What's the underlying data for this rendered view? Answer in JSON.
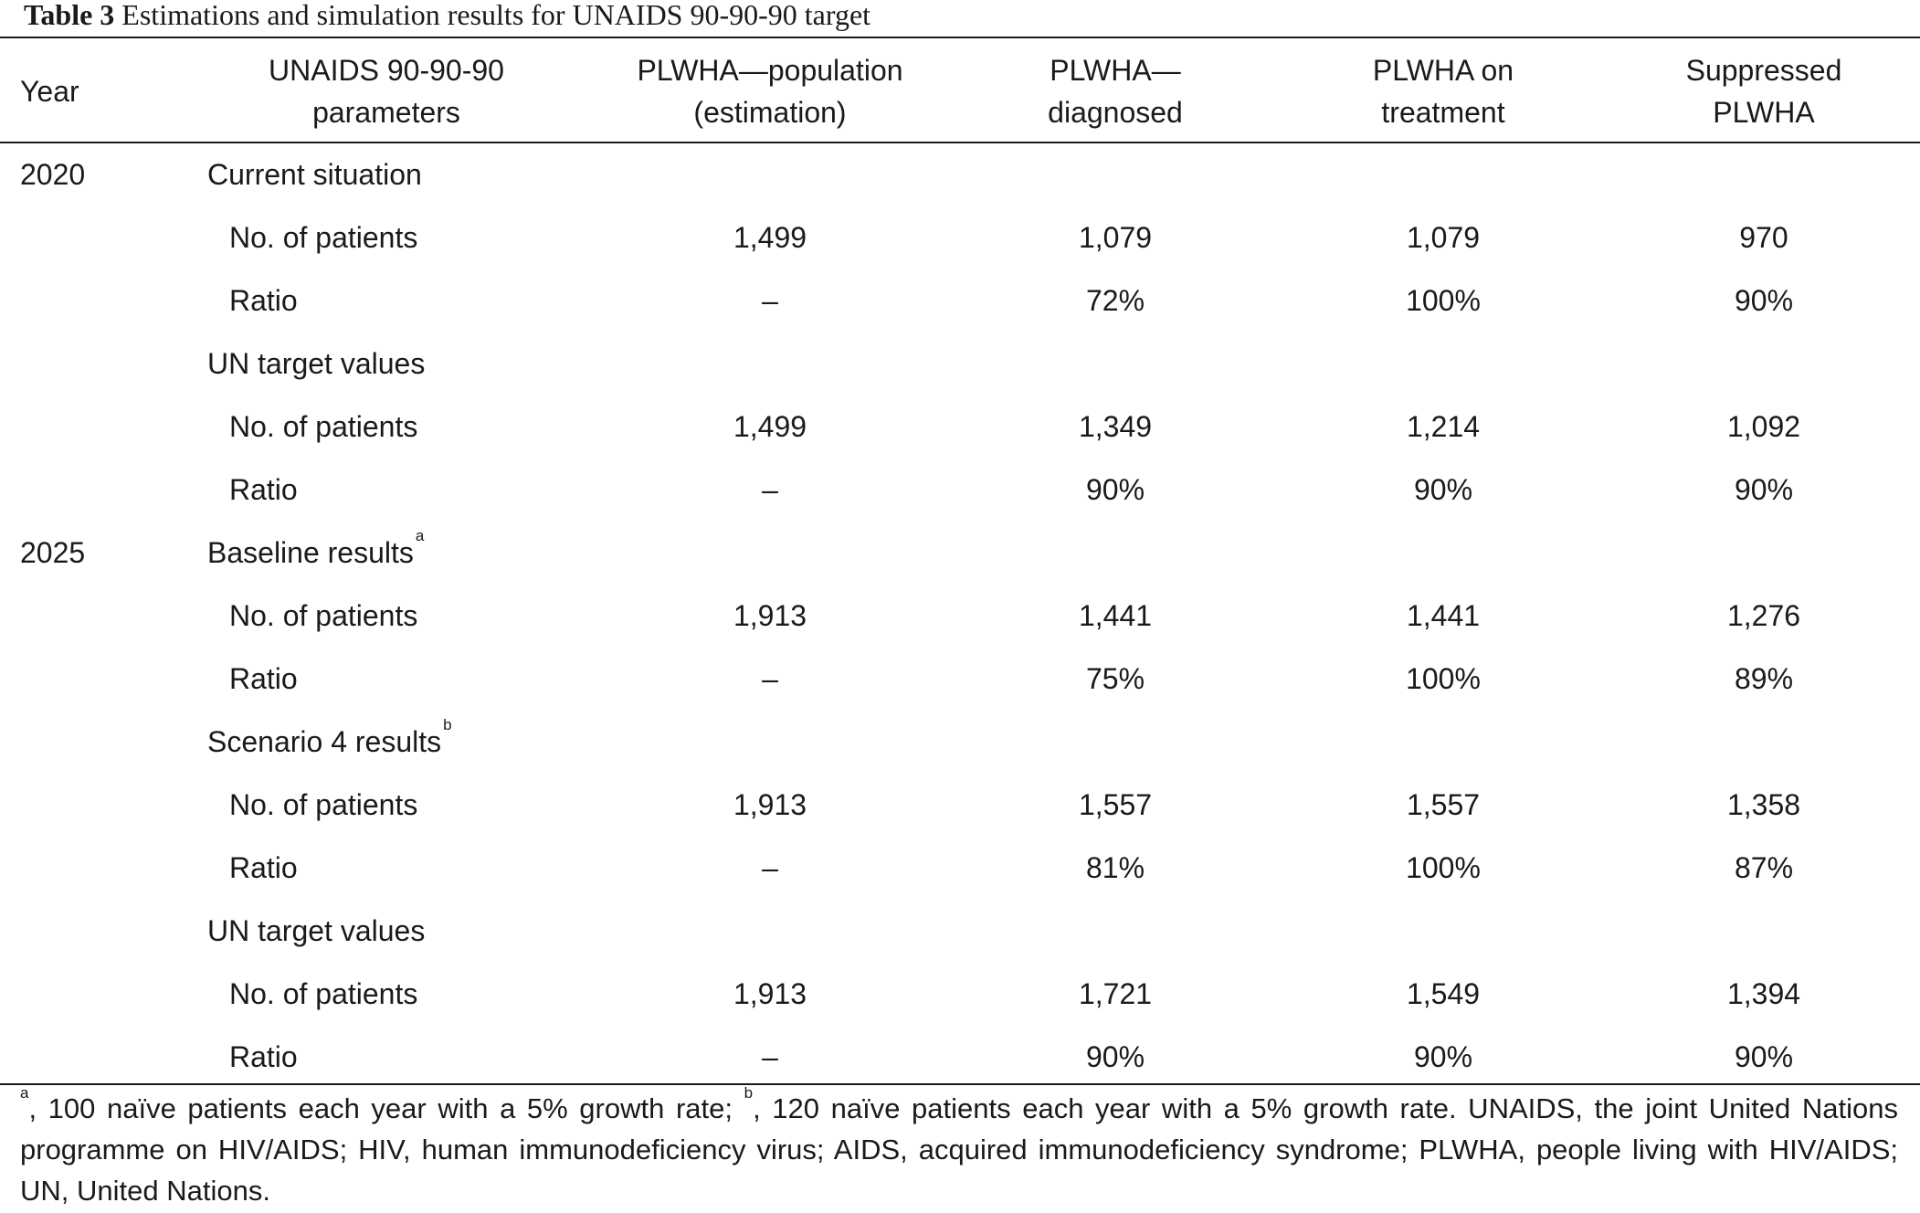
{
  "caption": {
    "label": "Table 3",
    "text": "Estimations and simulation results for UNAIDS 90-90-90 target"
  },
  "header": {
    "year": "Year",
    "params_line1": "UNAIDS 90-90-90",
    "params_line2": "parameters",
    "population_line1": "PLWHA—population",
    "population_line2": "(estimation)",
    "diagnosed_line1": "PLWHA—",
    "diagnosed_line2": "diagnosed",
    "treatment_line1": "PLWHA on",
    "treatment_line2": "treatment",
    "suppressed_line1": "Suppressed",
    "suppressed_line2": "PLWHA"
  },
  "rows": {
    "r0": {
      "year": "2020",
      "group": "Current situation",
      "sup": ""
    },
    "r1": {
      "label": "No. of patients",
      "population": "1,499",
      "diagnosed": "1,079",
      "treatment": "1,079",
      "suppressed": "970"
    },
    "r2": {
      "label": "Ratio",
      "population": "–",
      "diagnosed": "72%",
      "treatment": "100%",
      "suppressed": "90%"
    },
    "r3": {
      "group": "UN target values"
    },
    "r4": {
      "label": "No. of patients",
      "population": "1,499",
      "diagnosed": "1,349",
      "treatment": "1,214",
      "suppressed": "1,092"
    },
    "r5": {
      "label": "Ratio",
      "population": "–",
      "diagnosed": "90%",
      "treatment": "90%",
      "suppressed": "90%"
    },
    "r6": {
      "year": "2025",
      "group": "Baseline results",
      "sup": "a"
    },
    "r7": {
      "label": "No. of patients",
      "population": "1,913",
      "diagnosed": "1,441",
      "treatment": "1,441",
      "suppressed": "1,276"
    },
    "r8": {
      "label": "Ratio",
      "population": "–",
      "diagnosed": "75%",
      "treatment": "100%",
      "suppressed": "89%"
    },
    "r9": {
      "group": "Scenario 4 results",
      "sup": "b"
    },
    "r10": {
      "label": "No. of patients",
      "population": "1,913",
      "diagnosed": "1,557",
      "treatment": "1,557",
      "suppressed": "1,358"
    },
    "r11": {
      "label": "Ratio",
      "population": "–",
      "diagnosed": "81%",
      "treatment": "100%",
      "suppressed": "87%"
    },
    "r12": {
      "group": "UN target values"
    },
    "r13": {
      "label": "No. of patients",
      "population": "1,913",
      "diagnosed": "1,721",
      "treatment": "1,549",
      "suppressed": "1,394"
    },
    "r14": {
      "label": "Ratio",
      "population": "–",
      "diagnosed": "90%",
      "treatment": "90%",
      "suppressed": "90%"
    }
  },
  "footnote": {
    "sup_a": "a",
    "text_a": ", 100 naïve patients each year with a 5% growth rate; ",
    "sup_b": "b",
    "text_b": ", 120 naïve patients each year with a 5% growth rate. UNAIDS, the joint United Nations programme on HIV/AIDS; HIV, human immunodeficiency virus; AIDS, acquired immunodeficiency syndrome; PLWHA, people living with HIV/AIDS; UN, United Nations."
  }
}
